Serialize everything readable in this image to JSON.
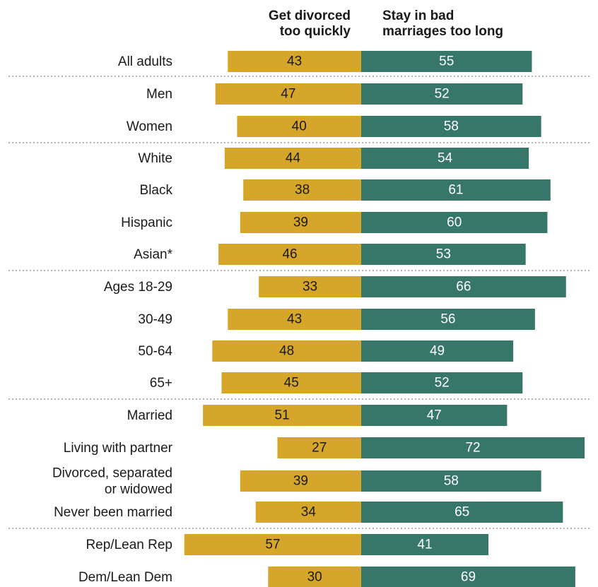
{
  "chart_data": {
    "type": "bar",
    "subtype": "diverging-horizontal",
    "title": "",
    "series": [
      {
        "name": "Get divorced too quickly",
        "color": "#d6a62b",
        "values": [
          43,
          47,
          40,
          44,
          38,
          39,
          46,
          33,
          43,
          48,
          45,
          51,
          27,
          39,
          34,
          57,
          30
        ]
      },
      {
        "name": "Stay in bad marriages too long",
        "color": "#367769",
        "values": [
          55,
          52,
          58,
          54,
          61,
          60,
          53,
          66,
          56,
          49,
          52,
          47,
          72,
          58,
          65,
          41,
          69
        ]
      }
    ],
    "categories": [
      "All adults",
      "Men",
      "Women",
      "White",
      "Black",
      "Hispanic",
      "Asian*",
      "Ages 18-29",
      "30-49",
      "50-64",
      "65+",
      "Married",
      "Living with partner",
      "Divorced, separated or widowed",
      "Never been married",
      "Rep/Lean Rep",
      "Dem/Lean Dem"
    ],
    "row_labels": [
      [
        "All adults"
      ],
      [
        "Men"
      ],
      [
        "Women"
      ],
      [
        "White"
      ],
      [
        "Black"
      ],
      [
        "Hispanic"
      ],
      [
        "Asian*"
      ],
      [
        "Ages 18-29"
      ],
      [
        "30-49"
      ],
      [
        "50-64"
      ],
      [
        "65+"
      ],
      [
        "Married"
      ],
      [
        "Living with partner"
      ],
      [
        "Divorced, separated",
        "or widowed"
      ],
      [
        "Never been married"
      ],
      [
        "Rep/Lean Rep"
      ],
      [
        "Dem/Lean Dem"
      ]
    ],
    "groups": [
      [
        0
      ],
      [
        1,
        2
      ],
      [
        3,
        4,
        5,
        6
      ],
      [
        7,
        8,
        9,
        10
      ],
      [
        11,
        12,
        13,
        14
      ],
      [
        15,
        16
      ]
    ],
    "headers": {
      "left": [
        "Get divorced",
        "too quickly"
      ],
      "right": [
        "Stay in bad",
        "marriages too long"
      ]
    },
    "label_colors": {
      "left": "#1a1a1a",
      "right": "#ffffff"
    },
    "divider_color": "#9a9a9a"
  }
}
